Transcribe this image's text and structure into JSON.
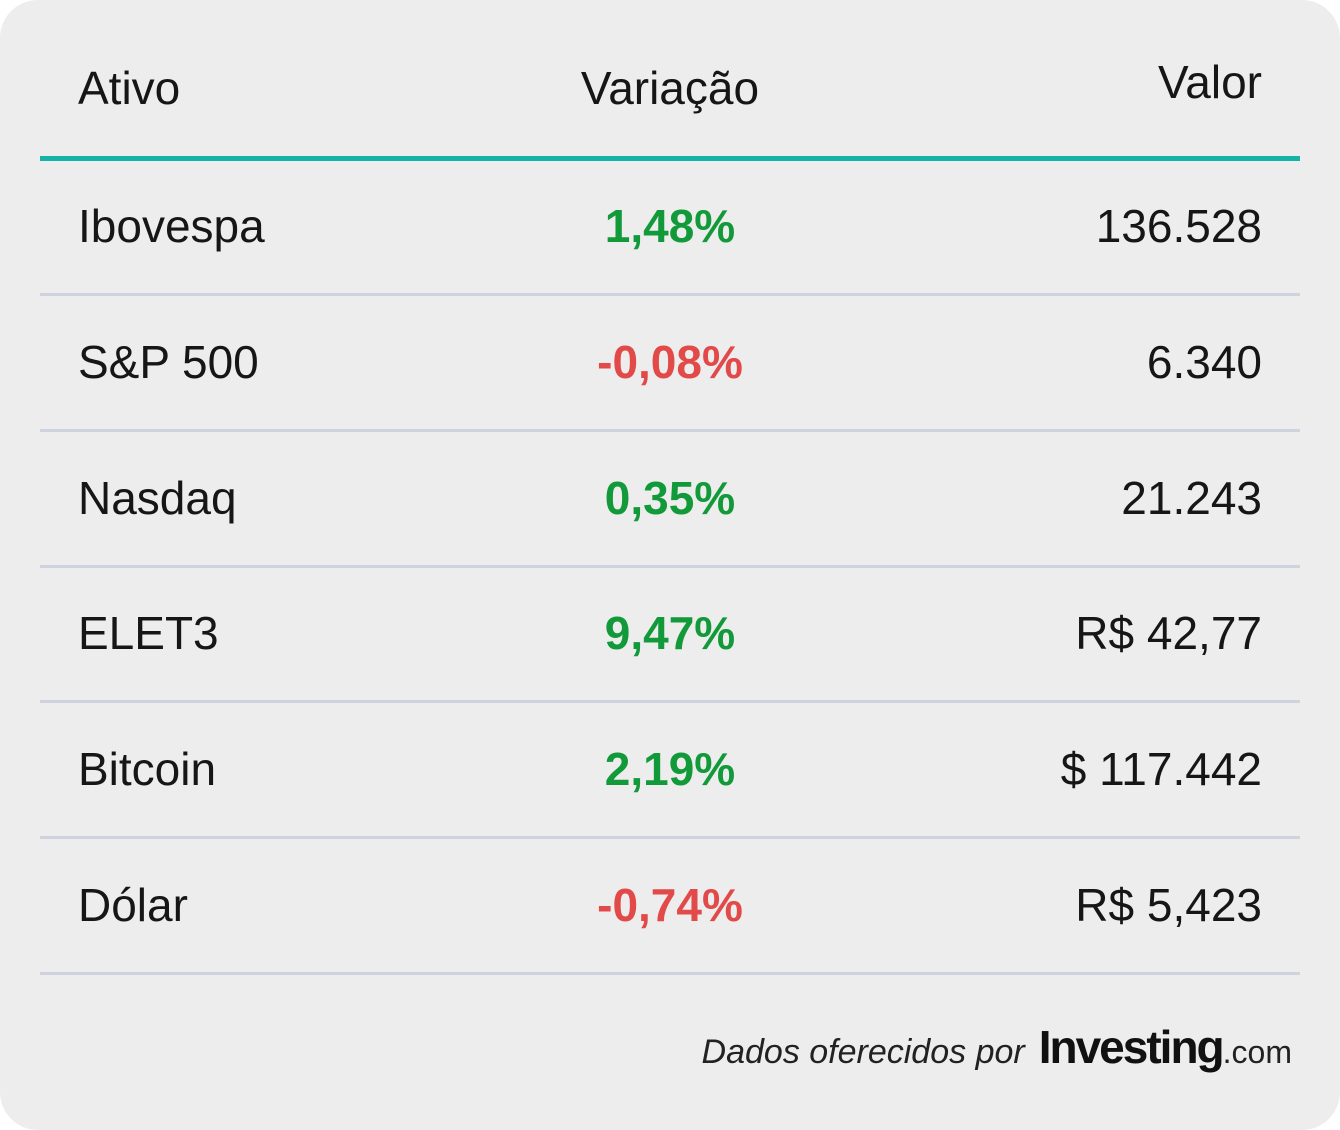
{
  "table": {
    "headers": [
      "Ativo",
      "Variação",
      "Valor"
    ],
    "rows": [
      [
        "Ibovespa",
        "1,48%",
        "136.528"
      ],
      [
        "S&P 500",
        "-0,08%",
        "6.340"
      ],
      [
        "Nasdaq",
        "0,35%",
        "21.243"
      ],
      [
        "ELET3",
        "9,47%",
        "R$ 42,77"
      ],
      [
        "Bitcoin",
        "2,19%",
        "$ 117.442"
      ],
      [
        "Dólar",
        "-0,74%",
        "R$ 5,423"
      ]
    ]
  },
  "footer": {
    "text": "Dados oferecidos por",
    "logo": "Investing",
    "logo_suffix": ".com"
  }
}
